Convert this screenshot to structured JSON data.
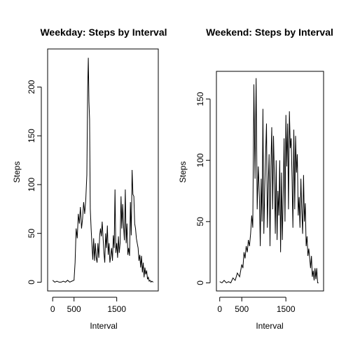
{
  "chart_data": [
    {
      "type": "line",
      "title": "Weekday: Steps by Interval",
      "xlabel": "Interval",
      "ylabel": "Steps",
      "xlim": [
        -118,
        2473
      ],
      "ylim": [
        -9,
        239
      ],
      "xticks": [
        "0",
        "500",
        "1500"
      ],
      "yticks": [
        "0",
        "50",
        "100",
        "150",
        "200"
      ],
      "xtick_values": [
        0,
        500,
        1500
      ],
      "ytick_values": [
        0,
        50,
        100,
        150,
        200
      ],
      "series": [
        {
          "x": [
            0,
            50,
            100,
            150,
            200,
            250,
            300,
            350,
            400,
            450,
            500,
            525,
            550,
            575,
            600,
            625,
            650,
            675,
            700,
            725,
            750,
            775,
            800,
            820,
            835,
            850,
            865,
            880,
            900,
            920,
            940,
            960,
            980,
            1000,
            1020,
            1040,
            1060,
            1080,
            1100,
            1120,
            1140,
            1160,
            1180,
            1200,
            1220,
            1240,
            1260,
            1280,
            1300,
            1320,
            1340,
            1360,
            1380,
            1400,
            1420,
            1440,
            1460,
            1480,
            1500,
            1520,
            1540,
            1560,
            1580,
            1600,
            1620,
            1640,
            1660,
            1680,
            1700,
            1720,
            1740,
            1760,
            1780,
            1800,
            1820,
            1840,
            1860,
            1880,
            1900,
            1920,
            1940,
            1960,
            1980,
            2000,
            2020,
            2040,
            2060,
            2080,
            2100,
            2120,
            2140,
            2160,
            2180,
            2200,
            2220,
            2240,
            2260,
            2280,
            2300,
            2320,
            2355
          ],
          "y": [
            2,
            0,
            1,
            0,
            0,
            1,
            0,
            2,
            0,
            1,
            2,
            20,
            55,
            45,
            70,
            60,
            77,
            55,
            65,
            82,
            70,
            85,
            110,
            200,
            230,
            185,
            167,
            75,
            55,
            38,
            23,
            45,
            22,
            40,
            25,
            20,
            40,
            25,
            48,
            55,
            47,
            62,
            45,
            30,
            20,
            50,
            35,
            58,
            28,
            40,
            20,
            27,
            35,
            22,
            48,
            35,
            95,
            30,
            40,
            25,
            47,
            30,
            40,
            88,
            55,
            80,
            58,
            43,
            95,
            40,
            60,
            28,
            35,
            27,
            82,
            48,
            115,
            90,
            88,
            60,
            55,
            45,
            40,
            35,
            22,
            28,
            15,
            27,
            10,
            20,
            5,
            15,
            8,
            12,
            3,
            5,
            1,
            2,
            0,
            1,
            0
          ]
        }
      ]
    },
    {
      "type": "line",
      "title": "Weekend: Steps by Interval",
      "xlabel": "Interval",
      "ylabel": "Steps",
      "xlim": [
        -75,
        2355
      ],
      "ylim": [
        -6.6,
        172.6
      ],
      "xticks": [
        "0",
        "500",
        "1500"
      ],
      "yticks": [
        "0",
        "50",
        "100",
        "150"
      ],
      "xtick_values": [
        0,
        500,
        1500
      ],
      "ytick_values": [
        0,
        50,
        100,
        150
      ],
      "series": [
        {
          "x": [
            0,
            50,
            100,
            150,
            200,
            250,
            300,
            350,
            400,
            450,
            500,
            525,
            550,
            575,
            600,
            625,
            650,
            675,
            700,
            725,
            750,
            775,
            800,
            825,
            850,
            875,
            900,
            920,
            940,
            960,
            980,
            1000,
            1020,
            1040,
            1060,
            1080,
            1100,
            1120,
            1140,
            1160,
            1180,
            1200,
            1220,
            1240,
            1260,
            1280,
            1300,
            1320,
            1340,
            1360,
            1380,
            1400,
            1420,
            1440,
            1460,
            1480,
            1500,
            1520,
            1540,
            1560,
            1580,
            1600,
            1620,
            1640,
            1660,
            1680,
            1700,
            1720,
            1740,
            1760,
            1780,
            1800,
            1820,
            1840,
            1860,
            1880,
            1900,
            1920,
            1940,
            1960,
            1980,
            2000,
            2020,
            2040,
            2060,
            2080,
            2100,
            2120,
            2140,
            2160,
            2180,
            2200,
            2220,
            2240
          ],
          "y": [
            1,
            0,
            2,
            0,
            1,
            0,
            4,
            2,
            8,
            5,
            15,
            12,
            25,
            20,
            30,
            25,
            35,
            30,
            40,
            55,
            45,
            162,
            85,
            167,
            60,
            95,
            70,
            30,
            85,
            50,
            142,
            40,
            75,
            105,
            130,
            45,
            80,
            105,
            30,
            95,
            127,
            60,
            120,
            85,
            40,
            100,
            35,
            75,
            55,
            100,
            25,
            90,
            35,
            72,
            118,
            50,
            137,
            95,
            130,
            60,
            140,
            110,
            118,
            85,
            45,
            125,
            60,
            120,
            90,
            105,
            55,
            70,
            45,
            85,
            60,
            40,
            88,
            50,
            65,
            30,
            38,
            22,
            28,
            20,
            12,
            22,
            5,
            10,
            2,
            12,
            3,
            12,
            0,
            0
          ]
        }
      ]
    }
  ]
}
